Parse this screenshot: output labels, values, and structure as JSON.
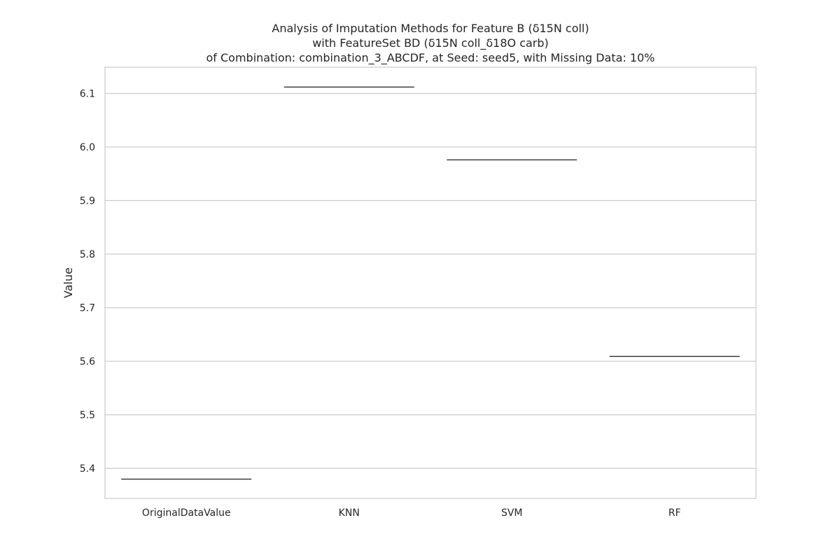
{
  "chart_data": {
    "type": "box",
    "title_lines": [
      "Analysis of Imputation Methods for Feature B (δ15N coll)",
      "with FeatureSet BD (δ15N coll_δ18O carb)",
      "of Combination: combination_3_ABCDF, at Seed: seed5, with Missing Data: 10%"
    ],
    "xlabel": "",
    "ylabel": "Value",
    "categories": [
      "OriginalDataValue",
      "KNN",
      "SVM",
      "RF"
    ],
    "values": [
      5.38,
      6.112,
      5.976,
      5.609
    ],
    "yticks": [
      "5.4",
      "5.5",
      "5.6",
      "5.7",
      "5.8",
      "5.9",
      "6.0",
      "6.1"
    ],
    "ylim": [
      5.344,
      6.149
    ],
    "grid": true,
    "colors": {
      "median_line": "#3d3d3d",
      "grid": "#cccccc",
      "axes_frame": "#cccccc",
      "text": "#262626"
    }
  }
}
